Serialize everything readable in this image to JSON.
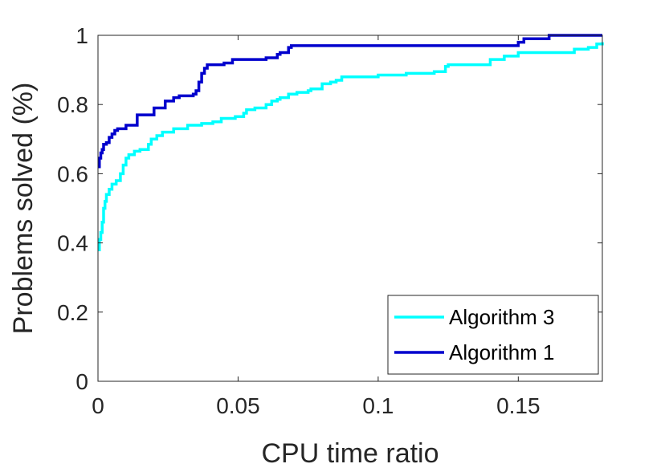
{
  "chart_data": {
    "type": "line",
    "title": "",
    "xlabel": "CPU time ratio",
    "ylabel": "Problems solved (%)",
    "xlim": [
      0,
      0.18
    ],
    "ylim": [
      0,
      1
    ],
    "xticks": [
      0,
      0.05,
      0.1,
      0.15
    ],
    "xtick_labels": [
      "0",
      "0.05",
      "0.1",
      "0.15"
    ],
    "yticks": [
      0,
      0.2,
      0.4,
      0.6,
      0.8,
      1
    ],
    "ytick_labels": [
      "0",
      "0.2",
      "0.4",
      "0.6",
      "0.8",
      "1"
    ],
    "grid": false,
    "box": true,
    "legend_position": "bottom-right",
    "step": true,
    "series": [
      {
        "name": "Algorithm 3",
        "color": "#00FFFF",
        "x": [
          0,
          0.0005,
          0.001,
          0.0015,
          0.002,
          0.0025,
          0.003,
          0.004,
          0.005,
          0.0065,
          0.008,
          0.009,
          0.01,
          0.011,
          0.013,
          0.015,
          0.018,
          0.019,
          0.021,
          0.023,
          0.027,
          0.032,
          0.037,
          0.041,
          0.044,
          0.049,
          0.052,
          0.053,
          0.056,
          0.06,
          0.062,
          0.064,
          0.065,
          0.068,
          0.071,
          0.075,
          0.076,
          0.08,
          0.083,
          0.085,
          0.087,
          0.1,
          0.11,
          0.12,
          0.124,
          0.125,
          0.14,
          0.145,
          0.15,
          0.17,
          0.175,
          0.178,
          0.18
        ],
        "values": [
          0.38,
          0.41,
          0.43,
          0.46,
          0.5,
          0.52,
          0.54,
          0.555,
          0.57,
          0.58,
          0.6,
          0.625,
          0.645,
          0.655,
          0.665,
          0.67,
          0.685,
          0.7,
          0.71,
          0.72,
          0.73,
          0.74,
          0.745,
          0.75,
          0.76,
          0.765,
          0.775,
          0.785,
          0.79,
          0.8,
          0.81,
          0.815,
          0.82,
          0.83,
          0.835,
          0.84,
          0.845,
          0.86,
          0.865,
          0.87,
          0.88,
          0.885,
          0.89,
          0.895,
          0.91,
          0.915,
          0.93,
          0.94,
          0.95,
          0.96,
          0.965,
          0.975,
          0.98
        ]
      },
      {
        "name": "Algorithm 1",
        "color": "#0000CD",
        "x": [
          0,
          0.0005,
          0.001,
          0.0015,
          0.002,
          0.003,
          0.004,
          0.005,
          0.006,
          0.007,
          0.01,
          0.014,
          0.02,
          0.024,
          0.027,
          0.029,
          0.034,
          0.035,
          0.036,
          0.037,
          0.038,
          0.039,
          0.045,
          0.048,
          0.06,
          0.064,
          0.065,
          0.068,
          0.069,
          0.07,
          0.09,
          0.1,
          0.15,
          0.152,
          0.161,
          0.178,
          0.18
        ],
        "values": [
          0.62,
          0.645,
          0.66,
          0.67,
          0.685,
          0.69,
          0.705,
          0.715,
          0.725,
          0.73,
          0.74,
          0.77,
          0.79,
          0.81,
          0.82,
          0.825,
          0.83,
          0.84,
          0.865,
          0.89,
          0.905,
          0.915,
          0.92,
          0.93,
          0.935,
          0.945,
          0.95,
          0.965,
          0.97,
          0.97,
          0.97,
          0.97,
          0.98,
          0.99,
          1.0,
          1.0,
          1.0
        ]
      }
    ]
  }
}
